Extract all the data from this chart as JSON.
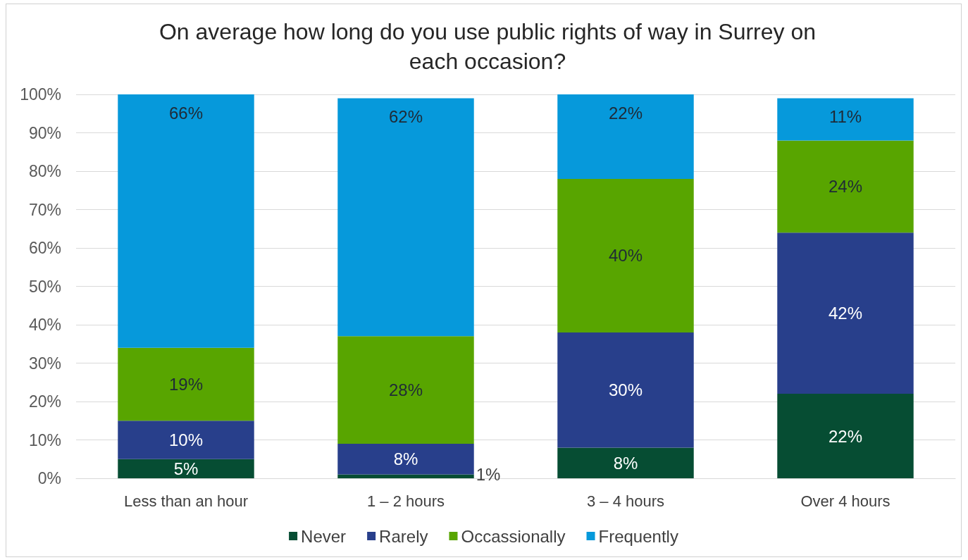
{
  "chart_data": {
    "type": "bar",
    "stacked": true,
    "title": "On average how long do you use public rights of way in Surrey on each occasion?",
    "categories": [
      "Less than an hour",
      "1 – 2 hours",
      "3 – 4 hours",
      "Over 4 hours"
    ],
    "series": [
      {
        "name": "Never",
        "color": "#064d33",
        "values": [
          5,
          1,
          8,
          22
        ],
        "value_labels": [
          "5%",
          "1%",
          "8%",
          "22%"
        ]
      },
      {
        "name": "Rarely",
        "color": "#283f8b",
        "values": [
          10,
          8,
          30,
          42
        ],
        "value_labels": [
          "10%",
          "8%",
          "30%",
          "42%"
        ]
      },
      {
        "name": "Occassionally",
        "color": "#58a500",
        "values": [
          19,
          28,
          40,
          24
        ],
        "value_labels": [
          "19%",
          "28%",
          "40%",
          "24%"
        ]
      },
      {
        "name": "Frequently",
        "color": "#0699db",
        "values": [
          66,
          62,
          22,
          11
        ],
        "value_labels": [
          "66%",
          "62%",
          "22%",
          "11%"
        ]
      }
    ],
    "ylim": [
      0,
      100
    ],
    "yticks": [
      {
        "value": 0,
        "label": "0%"
      },
      {
        "value": 10,
        "label": "10%"
      },
      {
        "value": 20,
        "label": "20%"
      },
      {
        "value": 30,
        "label": "30%"
      },
      {
        "value": 40,
        "label": "40%"
      },
      {
        "value": 50,
        "label": "50%"
      },
      {
        "value": 60,
        "label": "60%"
      },
      {
        "value": 70,
        "label": "70%"
      },
      {
        "value": 80,
        "label": "80%"
      },
      {
        "value": 90,
        "label": "90%"
      },
      {
        "value": 100,
        "label": "100%"
      }
    ],
    "grid": "y",
    "legend": "bottom"
  }
}
